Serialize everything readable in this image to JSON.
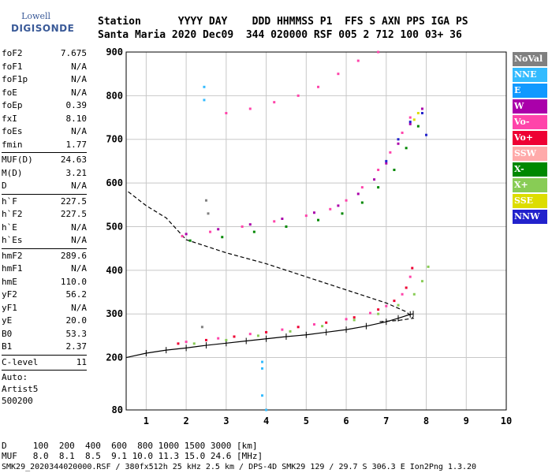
{
  "logo": {
    "line1": "Lowell",
    "line2": "DIGISONDE"
  },
  "header": {
    "line1": "Station      YYYY DAY    DDD HHMMSS P1  FFS S AXN PPS IGA PS",
    "line2": "Santa Maria 2020 Dec09  344 020000 RSF 005 2 712 100 03+ 36"
  },
  "params": {
    "group1": [
      {
        "label": "foF2",
        "value": "7.675"
      },
      {
        "label": "foF1",
        "value": "N/A"
      },
      {
        "label": "foF1p",
        "value": "N/A"
      },
      {
        "label": "foE",
        "value": "N/A"
      },
      {
        "label": "foEp",
        "value": "0.39"
      },
      {
        "label": "fxI",
        "value": "8.10"
      },
      {
        "label": "foEs",
        "value": "N/A"
      },
      {
        "label": "fmin",
        "value": "1.77"
      }
    ],
    "group2": [
      {
        "label": "MUF(D)",
        "value": "24.63"
      },
      {
        "label": "M(D)",
        "value": "3.21"
      },
      {
        "label": "D",
        "value": "N/A"
      }
    ],
    "group3": [
      {
        "label": "h`F",
        "value": "227.5"
      },
      {
        "label": "h`F2",
        "value": "227.5"
      },
      {
        "label": "h`E",
        "value": "N/A"
      },
      {
        "label": "h`Es",
        "value": "N/A"
      }
    ],
    "group4": [
      {
        "label": "hmF2",
        "value": "289.6"
      },
      {
        "label": "hmF1",
        "value": "N/A"
      },
      {
        "label": "hmE",
        "value": "110.0"
      },
      {
        "label": "yF2",
        "value": "56.2"
      },
      {
        "label": "yF1",
        "value": "N/A"
      },
      {
        "label": "yE",
        "value": "20.0"
      },
      {
        "label": "B0",
        "value": "53.3"
      },
      {
        "label": "B1",
        "value": "2.37"
      }
    ],
    "group5": [
      {
        "label": "C-level",
        "value": "11"
      }
    ],
    "auto": [
      "Auto:",
      "Artist5",
      "500200"
    ]
  },
  "legend": [
    {
      "label": "NoVal",
      "color": "#808080"
    },
    {
      "label": "NNE",
      "color": "#33bbff"
    },
    {
      "label": "E",
      "color": "#1199ff"
    },
    {
      "label": "W",
      "color": "#aa00aa"
    },
    {
      "label": "Vo-",
      "color": "#ff44aa"
    },
    {
      "label": "Vo+",
      "color": "#ee0033"
    },
    {
      "label": "SSW",
      "color": "#ffaaaa"
    },
    {
      "label": "X-",
      "color": "#008800"
    },
    {
      "label": "X+",
      "color": "#88cc55"
    },
    {
      "label": "SSE",
      "color": "#dddd00"
    },
    {
      "label": "NNW",
      "color": "#2222cc"
    }
  ],
  "bottom": {
    "line1": "D     100  200  400  600  800 1000 1500 3000 [km]",
    "line2": "MUF   8.0  8.1  8.5  9.1 10.0 11.3 15.0 24.6 [MHz]",
    "line3": "SMK29_2020344020000.RSF / 380fx512h 25 kHz 2.5 km / DPS-4D SMK29 129 / 29.7 S 306.3 E Ion2Png 1.3.20"
  },
  "chart_data": {
    "type": "scatter",
    "xlim": [
      0.5,
      10
    ],
    "ylim": [
      80,
      900
    ],
    "xticks": [
      1,
      2,
      3,
      4,
      5,
      6,
      7,
      8,
      9,
      10
    ],
    "yticks": [
      80,
      200,
      300,
      400,
      500,
      600,
      700,
      800,
      900
    ],
    "grid": true,
    "legend_position": "right",
    "series": [
      {
        "name": "Vo+",
        "color": "#ee0033",
        "points": [
          [
            1.8,
            232
          ],
          [
            2.5,
            240
          ],
          [
            3.2,
            248
          ],
          [
            4,
            258
          ],
          [
            4.8,
            270
          ],
          [
            5.5,
            280
          ],
          [
            6.2,
            292
          ],
          [
            6.8,
            310
          ],
          [
            7.2,
            330
          ],
          [
            7.5,
            360
          ],
          [
            7.65,
            405
          ]
        ]
      },
      {
        "name": "Vo-",
        "color": "#ff44aa",
        "points": [
          [
            2.0,
            236
          ],
          [
            2.8,
            244
          ],
          [
            3.6,
            254
          ],
          [
            4.4,
            264
          ],
          [
            5.2,
            276
          ],
          [
            6.0,
            288
          ],
          [
            6.6,
            302
          ],
          [
            7.0,
            318
          ],
          [
            7.4,
            345
          ],
          [
            7.6,
            385
          ],
          [
            1.9,
            478
          ],
          [
            2.6,
            488
          ],
          [
            3.4,
            500
          ],
          [
            4.2,
            512
          ],
          [
            5.0,
            525
          ],
          [
            5.6,
            540
          ],
          [
            6.0,
            560
          ],
          [
            6.4,
            590
          ],
          [
            6.8,
            630
          ],
          [
            7.1,
            670
          ],
          [
            7.4,
            715
          ],
          [
            7.6,
            750
          ],
          [
            3.0,
            760
          ],
          [
            3.6,
            770
          ],
          [
            4.2,
            785
          ],
          [
            4.8,
            800
          ],
          [
            5.3,
            820
          ],
          [
            5.8,
            850
          ],
          [
            6.3,
            880
          ],
          [
            6.8,
            900
          ]
        ]
      },
      {
        "name": "X+",
        "color": "#88cc55",
        "points": [
          [
            2.2,
            232
          ],
          [
            3.0,
            240
          ],
          [
            3.8,
            250
          ],
          [
            4.6,
            260
          ],
          [
            5.4,
            272
          ],
          [
            6.2,
            286
          ],
          [
            6.8,
            300
          ],
          [
            7.3,
            320
          ],
          [
            7.7,
            345
          ],
          [
            7.9,
            375
          ],
          [
            8.05,
            408
          ]
        ]
      },
      {
        "name": "X-",
        "color": "#008800",
        "points": [
          [
            2.1,
            468
          ],
          [
            2.9,
            476
          ],
          [
            3.7,
            488
          ],
          [
            4.5,
            500
          ],
          [
            5.3,
            515
          ],
          [
            5.9,
            530
          ],
          [
            6.4,
            555
          ],
          [
            6.8,
            590
          ],
          [
            7.2,
            630
          ],
          [
            7.5,
            680
          ],
          [
            7.8,
            730
          ]
        ]
      },
      {
        "name": "W",
        "color": "#aa00aa",
        "points": [
          [
            2.0,
            483
          ],
          [
            2.8,
            494
          ],
          [
            3.6,
            505
          ],
          [
            4.4,
            518
          ],
          [
            5.2,
            532
          ],
          [
            5.8,
            548
          ],
          [
            6.3,
            575
          ],
          [
            6.7,
            608
          ],
          [
            7.0,
            645
          ],
          [
            7.3,
            690
          ],
          [
            7.6,
            735
          ],
          [
            7.9,
            770
          ]
        ]
      },
      {
        "name": "NNW",
        "color": "#2222cc",
        "points": [
          [
            7.0,
            650
          ],
          [
            7.3,
            700
          ],
          [
            7.6,
            740
          ],
          [
            7.9,
            760
          ],
          [
            8.0,
            710
          ]
        ]
      },
      {
        "name": "NNE",
        "color": "#33bbff",
        "points": [
          [
            2.45,
            820
          ],
          [
            2.45,
            790
          ],
          [
            3.9,
            190
          ],
          [
            3.9,
            175
          ],
          [
            3.9,
            113
          ],
          [
            4.0,
            80
          ]
        ]
      },
      {
        "name": "SSE",
        "color": "#dddd00",
        "points": [
          [
            7.7,
            745
          ],
          [
            7.8,
            760
          ]
        ]
      },
      {
        "name": "NoVal",
        "color": "#808080",
        "points": [
          [
            2.5,
            560
          ],
          [
            2.55,
            530
          ],
          [
            2.4,
            270
          ]
        ]
      }
    ],
    "o_trace": [
      [
        0.5,
        200
      ],
      [
        1.0,
        210
      ],
      [
        1.5,
        217
      ],
      [
        2.0,
        222
      ],
      [
        2.5,
        228
      ],
      [
        3.0,
        233
      ],
      [
        3.5,
        238
      ],
      [
        4.0,
        243
      ],
      [
        4.5,
        248
      ],
      [
        5.0,
        252
      ],
      [
        5.5,
        258
      ],
      [
        6.0,
        264
      ],
      [
        6.5,
        272
      ],
      [
        7.0,
        282
      ],
      [
        7.3,
        290
      ],
      [
        7.6,
        299
      ],
      [
        7.675,
        300
      ]
    ],
    "profile": [
      [
        0.55,
        580
      ],
      [
        1.0,
        548
      ],
      [
        1.5,
        520
      ],
      [
        2.0,
        470
      ],
      [
        3.0,
        440
      ],
      [
        4.0,
        415
      ],
      [
        5.0,
        385
      ],
      [
        6.0,
        355
      ],
      [
        7.0,
        325
      ],
      [
        7.5,
        305
      ],
      [
        7.675,
        290
      ],
      [
        7.3,
        285
      ],
      [
        6.8,
        282
      ]
    ]
  }
}
